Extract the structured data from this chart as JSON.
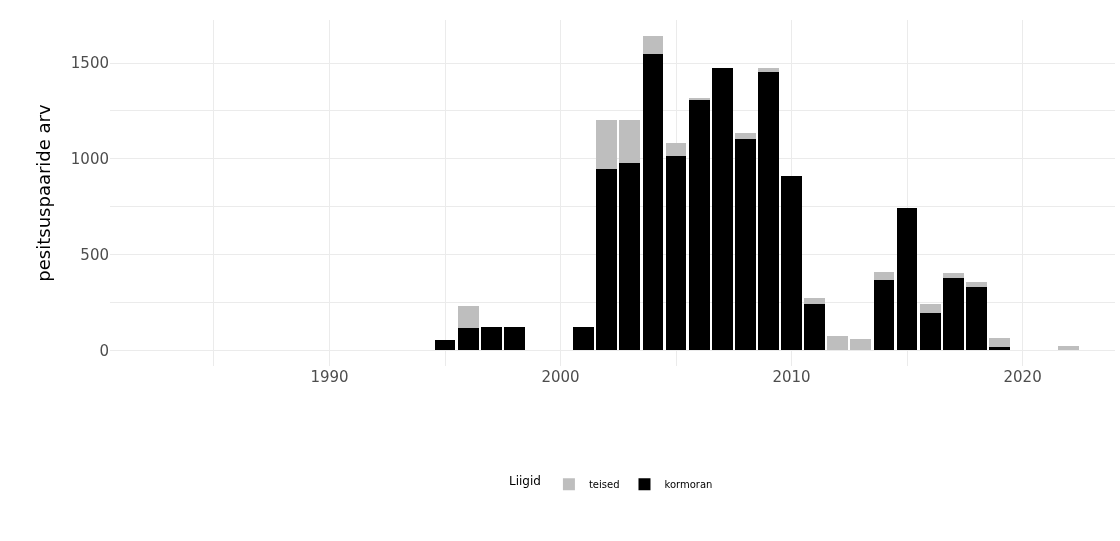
{
  "chart_data": {
    "type": "bar",
    "stacked": true,
    "ylabel": "pesitsuspaaride arv",
    "legend_title": "Liigid",
    "legend": "bottom",
    "grid": true,
    "x": [
      1995,
      1996,
      1997,
      1998,
      2001,
      2002,
      2003,
      2004,
      2005,
      2006,
      2007,
      2008,
      2009,
      2010,
      2011,
      2012,
      2013,
      2014,
      2015,
      2016,
      2017,
      2018,
      2019,
      2022
    ],
    "series": [
      {
        "name": "kormoran",
        "color": "#000000",
        "values": [
          56,
          114,
          124,
          124,
          124,
          946,
          977,
          1545,
          1016,
          1309,
          1475,
          1102,
          1456,
          910,
          243,
          null,
          null,
          369,
          745,
          194,
          380,
          331,
          17,
          null
        ]
      },
      {
        "name": "teised",
        "color": "#bebebe",
        "values": [
          null,
          118,
          null,
          null,
          null,
          255,
          224,
          98,
          67,
          8,
          null,
          31,
          18,
          null,
          28,
          75,
          57,
          39,
          null,
          49,
          26,
          27,
          48,
          24
        ]
      }
    ],
    "xlim": [
      1980.5,
      2024
    ],
    "xticks": [
      {
        "value": 1985,
        "label": null
      },
      1990,
      {
        "value": 1995,
        "label": null
      },
      2000,
      {
        "value": 2005,
        "label": null
      },
      2010,
      {
        "value": 2015,
        "label": null
      },
      2020
    ],
    "ylim": [
      -82,
      1725
    ],
    "yticks": [
      0,
      {
        "value": 250,
        "label": null
      },
      500,
      {
        "value": 750,
        "label": null
      },
      1000,
      {
        "value": 1250,
        "label": null
      },
      1500
    ]
  }
}
